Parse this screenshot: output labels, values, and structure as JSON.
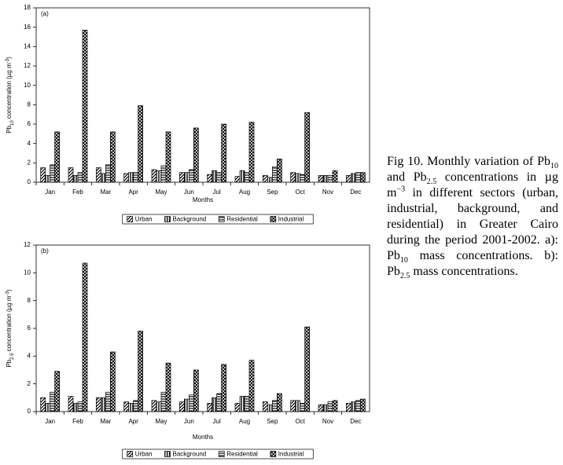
{
  "chart_data": [
    {
      "type": "bar",
      "panel_label": "(a)",
      "xlabel": "Months",
      "ylabel": [
        "Pb",
        "10",
        " concentration (µg m",
        "-3",
        ")"
      ],
      "categories": [
        "Jan",
        "Feb",
        "Mar",
        "Apr",
        "May",
        "Jun",
        "Jul",
        "Aug",
        "Sep",
        "Oct",
        "Nov",
        "Dec"
      ],
      "series": [
        {
          "name": "Urban",
          "values": [
            1.5,
            1.5,
            1.5,
            0.9,
            1.3,
            1.0,
            0.8,
            0.6,
            0.7,
            1.0,
            0.7,
            0.7
          ]
        },
        {
          "name": "Background",
          "values": [
            0.7,
            0.7,
            0.9,
            1.0,
            1.2,
            1.0,
            1.2,
            1.2,
            0.5,
            0.9,
            0.7,
            0.9
          ]
        },
        {
          "name": "Residential",
          "values": [
            1.8,
            1.0,
            1.8,
            1.0,
            1.7,
            1.3,
            1.0,
            1.0,
            1.6,
            0.8,
            0.7,
            1.0
          ]
        },
        {
          "name": "Industrial",
          "values": [
            5.2,
            15.7,
            5.2,
            7.9,
            5.2,
            5.6,
            6.0,
            6.2,
            2.4,
            7.2,
            1.2,
            1.0
          ]
        }
      ],
      "ylim": [
        0,
        18
      ],
      "yticks": [
        0,
        2,
        4,
        6,
        8,
        10,
        12,
        14,
        16,
        18
      ],
      "legend": "bottom"
    },
    {
      "type": "bar",
      "panel_label": "(b)",
      "xlabel": "Months",
      "ylabel": [
        "Pb",
        "2.5",
        " concentration (µg m",
        "-3",
        ")"
      ],
      "categories": [
        "Jan",
        "Feb",
        "Mar",
        "Apr",
        "May",
        "Jun",
        "Jul",
        "Aug",
        "Sep",
        "Oct",
        "Nov",
        "Dec"
      ],
      "series": [
        {
          "name": "Urban",
          "values": [
            1.0,
            1.1,
            1.0,
            0.7,
            0.8,
            0.7,
            0.6,
            0.6,
            0.7,
            0.8,
            0.5,
            0.6
          ]
        },
        {
          "name": "Background",
          "values": [
            0.6,
            0.6,
            1.0,
            0.6,
            0.7,
            0.9,
            1.0,
            1.1,
            0.5,
            0.8,
            0.5,
            0.7
          ]
        },
        {
          "name": "Residential",
          "values": [
            1.4,
            0.7,
            1.4,
            0.8,
            1.4,
            1.2,
            1.3,
            1.1,
            0.8,
            0.6,
            0.7,
            0.8
          ]
        },
        {
          "name": "Industrial",
          "values": [
            2.9,
            10.7,
            4.3,
            5.8,
            3.5,
            3.0,
            3.4,
            3.7,
            1.3,
            6.1,
            0.8,
            0.9
          ]
        }
      ],
      "ylim": [
        0,
        12
      ],
      "yticks": [
        0,
        2,
        4,
        6,
        8,
        10,
        12
      ],
      "legend": "bottom"
    }
  ],
  "caption": [
    "Fig 10. Monthly variation of Pb",
    "10",
    " and Pb",
    "2.5",
    " concentrations in µg m",
    "−3",
    " in different sectors (urban, industrial, background, and residential) in Greater Cairo during the period 2001-2002. a): Pb",
    "10",
    " mass concentrations. b): Pb",
    "2.5",
    " mass concentrations."
  ]
}
